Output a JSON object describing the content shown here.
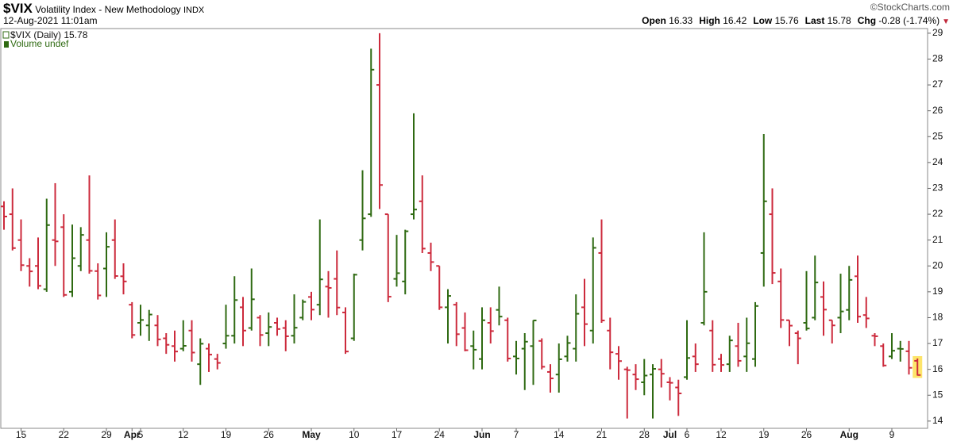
{
  "chart_data": {
    "type": "ohlc",
    "symbol": "$VIX",
    "name": "Volatility Index - New Methodology",
    "exchange": "INDX",
    "timestamp": "12-Aug-2021 11:01am",
    "watermark": "©StockCharts.com",
    "quote": [
      {
        "label": "Open",
        "value": 16.33
      },
      {
        "label": "High",
        "value": 16.42
      },
      {
        "label": "Low",
        "value": 15.76
      },
      {
        "label": "Last",
        "value": 15.78
      },
      {
        "label": "Chg",
        "value": -0.28
      }
    ],
    "change_percent": {
      "value": -1.74,
      "label": "(-1.74%)"
    },
    "legend": [
      "$VIX (Daily)",
      "Volume undef"
    ],
    "up_color": "#2f6a12",
    "down_color": "#cc2a3c",
    "last_bar_highlight": "#fde46a",
    "categories": [
      null,
      null,
      "15",
      null,
      null,
      null,
      null,
      "22",
      null,
      null,
      null,
      null,
      "29",
      null,
      null,
      "Apr",
      "5",
      null,
      null,
      null,
      null,
      "12",
      null,
      null,
      null,
      null,
      "19",
      null,
      null,
      null,
      null,
      "26",
      null,
      null,
      null,
      null,
      "May",
      null,
      null,
      null,
      null,
      "10",
      null,
      null,
      null,
      null,
      "17",
      null,
      null,
      null,
      null,
      "24",
      null,
      null,
      null,
      null,
      "Jun",
      null,
      null,
      null,
      "7",
      null,
      null,
      null,
      null,
      "14",
      null,
      null,
      null,
      null,
      "21",
      null,
      null,
      null,
      null,
      "28",
      null,
      null,
      "Jul",
      null,
      "6",
      null,
      null,
      null,
      "12",
      null,
      null,
      null,
      null,
      "19",
      null,
      null,
      null,
      null,
      "26",
      null,
      null,
      null,
      null,
      "Aug",
      null,
      null,
      null,
      null,
      "9",
      null,
      null,
      null
    ],
    "open": [
      22.3,
      22.0,
      21.0,
      20.0,
      20.0,
      19.1,
      21.0,
      21.5,
      19.0,
      20.0,
      21.0,
      19.8,
      19.9,
      21.0,
      19.6,
      18.5,
      17.8,
      17.7,
      17.7,
      17.2,
      16.9,
      16.8,
      17.5,
      16.2,
      16.8,
      16.4,
      17.0,
      17.3,
      18.4,
      17.6,
      18.0,
      17.4,
      17.8,
      17.6,
      17.3,
      18.0,
      18.8,
      18.5,
      19.2,
      19.5,
      18.2,
      17.2,
      21.0,
      22.0,
      27.0,
      22.0,
      19.5,
      19.4,
      22.0,
      22.5,
      20.5,
      20.0,
      18.4,
      18.5,
      17.6,
      16.9,
      16.4,
      17.8,
      18.3,
      17.9,
      16.5,
      16.8,
      16.9,
      17.1,
      15.9,
      15.8,
      16.5,
      16.8,
      18.4,
      17.5,
      20.5,
      17.5,
      16.6,
      16.0,
      15.8,
      15.5,
      15.8,
      16.0,
      15.5,
      15.3,
      15.7,
      16.5,
      17.8,
      17.5,
      16.4,
      16.2,
      16.9,
      16.5,
      16.4,
      20.5,
      22.0,
      19.4,
      17.9,
      17.4,
      17.8,
      18.0,
      18.8,
      17.9,
      18.0,
      18.3,
      19.6,
      18.1,
      17.3,
      16.9,
      16.5,
      16.8,
      16.7,
      16.33
    ],
    "high": [
      22.5,
      23.0,
      21.8,
      20.3,
      21.1,
      22.6,
      23.2,
      22.0,
      21.6,
      21.5,
      23.5,
      20.1,
      21.3,
      21.8,
      20.1,
      18.6,
      18.5,
      18.3,
      18.1,
      17.4,
      17.5,
      17.9,
      17.9,
      17.2,
      17.0,
      16.6,
      18.5,
      19.6,
      18.8,
      19.9,
      18.1,
      18.2,
      18.0,
      17.9,
      18.9,
      18.7,
      19.0,
      21.8,
      19.8,
      20.6,
      18.4,
      19.7,
      23.7,
      28.4,
      29.0,
      22.0,
      21.2,
      21.4,
      25.9,
      23.5,
      20.9,
      20.0,
      19.1,
      18.6,
      18.2,
      17.5,
      18.4,
      18.4,
      19.2,
      18.0,
      17.1,
      17.4,
      17.9,
      17.2,
      16.2,
      17.0,
      17.3,
      18.9,
      19.5,
      21.1,
      21.8,
      18.0,
      16.9,
      16.1,
      16.2,
      16.4,
      16.2,
      16.4,
      15.7,
      15.6,
      17.9,
      17.0,
      21.3,
      17.9,
      16.6,
      17.3,
      17.8,
      18.0,
      18.6,
      25.1,
      23.0,
      19.9,
      17.9,
      17.5,
      19.8,
      20.4,
      19.4,
      17.9,
      19.7,
      20.0,
      20.4,
      18.8,
      17.4,
      17.0,
      17.4,
      17.1,
      17.1,
      16.42
    ],
    "low": [
      21.4,
      20.6,
      19.8,
      19.2,
      19.1,
      19.0,
      20.0,
      18.8,
      18.8,
      19.8,
      19.7,
      18.7,
      18.8,
      19.5,
      18.9,
      17.2,
      17.3,
      17.1,
      16.9,
      16.6,
      16.3,
      16.7,
      16.3,
      15.4,
      15.9,
      16.0,
      16.8,
      17.0,
      16.9,
      17.5,
      16.9,
      16.9,
      17.3,
      16.7,
      17.0,
      17.9,
      17.9,
      18.1,
      18.0,
      18.1,
      16.6,
      17.1,
      20.6,
      21.9,
      22.2,
      18.6,
      19.2,
      18.9,
      21.8,
      20.5,
      19.8,
      18.3,
      17.0,
      16.9,
      16.7,
      16.0,
      16.0,
      17.0,
      17.7,
      16.3,
      15.8,
      15.2,
      15.4,
      16.0,
      15.1,
      15.1,
      16.3,
      16.3,
      16.9,
      17.0,
      17.8,
      16.0,
      15.6,
      14.1,
      15.2,
      15.0,
      14.1,
      15.3,
      14.8,
      14.2,
      15.6,
      15.9,
      17.7,
      15.9,
      15.9,
      15.9,
      16.1,
      15.9,
      16.1,
      19.2,
      19.3,
      17.6,
      16.9,
      16.2,
      17.5,
      17.9,
      17.3,
      17.0,
      17.4,
      17.9,
      17.8,
      17.6,
      16.9,
      16.1,
      16.4,
      16.3,
      15.8,
      15.76
    ],
    "close": [
      21.91,
      20.69,
      20.03,
      19.79,
      19.23,
      21.58,
      20.95,
      18.88,
      20.3,
      21.2,
      19.81,
      18.86,
      20.74,
      19.61,
      19.4,
      17.33,
      17.91,
      18.12,
      17.16,
      16.95,
      16.69,
      16.91,
      16.65,
      16.99,
      16.57,
      16.25,
      17.3,
      18.68,
      17.5,
      18.71,
      17.33,
      17.64,
      17.56,
      17.28,
      17.61,
      18.61,
      18.31,
      19.48,
      19.15,
      18.39,
      16.69,
      19.66,
      21.84,
      27.59,
      23.13,
      18.81,
      19.72,
      21.34,
      22.18,
      20.67,
      20.15,
      18.4,
      18.84,
      17.36,
      16.74,
      16.76,
      17.9,
      17.48,
      18.04,
      16.42,
      16.42,
      17.07,
      17.89,
      16.1,
      15.65,
      16.39,
      17.02,
      18.15,
      17.75,
      20.7,
      17.89,
      16.66,
      16.32,
      15.97,
      15.62,
      15.76,
      16.02,
      15.83,
      15.48,
      15.07,
      16.44,
      16.2,
      19.0,
      16.18,
      16.17,
      17.12,
      16.33,
      17.01,
      18.45,
      22.5,
      19.73,
      17.91,
      17.69,
      17.2,
      17.58,
      19.36,
      18.31,
      17.7,
      18.24,
      19.46,
      18.04,
      17.97,
      17.28,
      16.15,
      16.72,
      16.79,
      16.06,
      15.78
    ],
    "ylim": [
      13.72,
      29.18
    ],
    "yticks": [
      14,
      15,
      16,
      17,
      18,
      19,
      20,
      21,
      22,
      23,
      24,
      25,
      26,
      27,
      28,
      29
    ]
  }
}
